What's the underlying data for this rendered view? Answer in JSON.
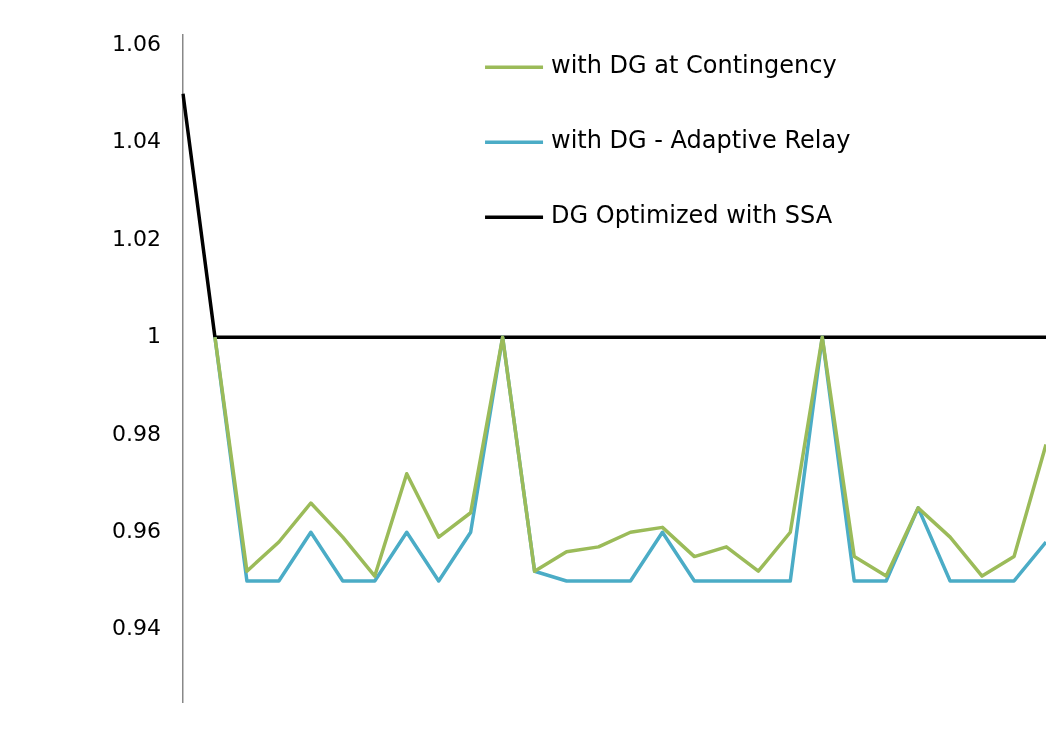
{
  "chart_data": {
    "type": "line",
    "categories": [
      null,
      null,
      null,
      null,
      null,
      null,
      null,
      null,
      null,
      null,
      null,
      null,
      null,
      null,
      null,
      null,
      null,
      null,
      null,
      null,
      null,
      null,
      null,
      null,
      null,
      null,
      null,
      null
    ],
    "series": [
      {
        "name": "with DG at Contingency",
        "color": "#9bbb59",
        "values": [
          null,
          1.0,
          0.952,
          0.958,
          0.966,
          0.959,
          0.951,
          0.972,
          0.959,
          0.964,
          1.0,
          0.952,
          0.956,
          0.957,
          0.96,
          0.961,
          0.955,
          0.957,
          0.952,
          0.96,
          1.0,
          0.955,
          0.951,
          0.965,
          0.959,
          0.951,
          0.955,
          0.978
        ]
      },
      {
        "name": "with DG - Adaptive Relay",
        "color": "#4bacc6",
        "values": [
          null,
          1.0,
          0.95,
          0.95,
          0.96,
          0.95,
          0.95,
          0.96,
          0.95,
          0.96,
          1.0,
          0.952,
          0.95,
          0.95,
          0.95,
          0.96,
          0.95,
          0.95,
          0.95,
          0.95,
          1.0,
          0.95,
          0.95,
          0.965,
          0.95,
          0.95,
          0.95,
          0.958
        ]
      },
      {
        "name": "DG Optimized with SSA",
        "color": "#000000",
        "values": [
          1.05,
          1.0,
          1.0,
          1.0,
          1.0,
          1.0,
          1.0,
          1.0,
          1.0,
          1.0,
          1.0,
          1.0,
          1.0,
          1.0,
          1.0,
          1.0,
          1.0,
          1.0,
          1.0,
          1.0,
          1.0,
          1.0,
          1.0,
          1.0,
          1.0,
          1.0,
          1.0,
          1.0
        ]
      }
    ],
    "ylim": [
      0.925,
      1.062
    ],
    "yticks": [
      0.94,
      0.96,
      0.98,
      1,
      1.02,
      1.04,
      1.06
    ],
    "grid": false,
    "legend": "top right",
    "marker": "none",
    "line_style": "solid",
    "tick_labels": "y"
  }
}
